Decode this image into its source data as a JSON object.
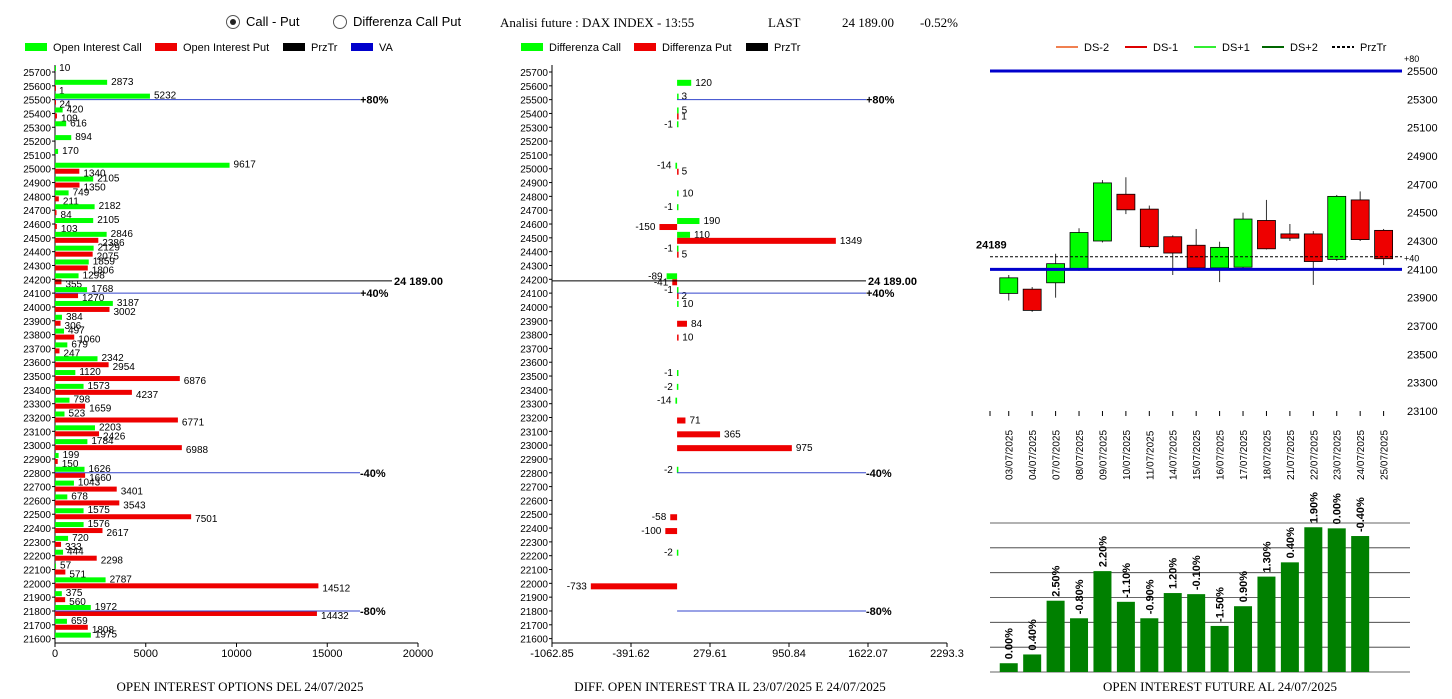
{
  "toolbar": {
    "option_call_put": "Call - Put",
    "option_diff": "Differenza Call Put",
    "header_title": "Analisi future : DAX INDEX - 13:55",
    "last_label": "LAST",
    "last_value": "24 189.00",
    "last_change": "-0.52%"
  },
  "colors": {
    "green": "#00ff00",
    "red": "#ee0000",
    "blue": "#0000cc",
    "darkgreen": "#008000",
    "va_line": "#3344cc"
  },
  "panels": {
    "left_title": "OPEN INTEREST OPTIONS DEL 24/07/2025",
    "middle_title": "DIFF. OPEN INTEREST TRA IL 23/07/2025 E 24/07/2025",
    "right_title": "OPEN INTEREST FUTURE AL 24/07/2025"
  },
  "chart_data": [
    {
      "type": "bar",
      "orientation": "horizontal",
      "legend": [
        "Open Interest Call",
        "Open Interest Put",
        "PrzTr",
        "VA"
      ],
      "strikes": [
        25700,
        25600,
        25500,
        25400,
        25300,
        25200,
        25100,
        25000,
        24900,
        24800,
        24700,
        24600,
        24500,
        24400,
        24300,
        24200,
        24100,
        24000,
        23900,
        23800,
        23700,
        23600,
        23500,
        23400,
        23300,
        23200,
        23100,
        23000,
        22900,
        22800,
        22700,
        22600,
        22500,
        22400,
        22300,
        22200,
        22100,
        22000,
        21900,
        21800,
        21700,
        21600
      ],
      "call": [
        10,
        2873,
        5232,
        420,
        616,
        894,
        170,
        9617,
        2105,
        749,
        2182,
        2105,
        2846,
        2129,
        1859,
        1298,
        1768,
        3187,
        384,
        497,
        679,
        2342,
        1120,
        1573,
        798,
        523,
        2203,
        1784,
        199,
        1626,
        1043,
        678,
        1575,
        1576,
        720,
        444,
        57,
        2787,
        375,
        1972,
        659,
        1975
      ],
      "put": [
        0,
        1,
        24,
        109,
        0,
        0,
        0,
        1340,
        1350,
        211,
        84,
        103,
        2386,
        2075,
        1806,
        355,
        1270,
        3002,
        306,
        1060,
        247,
        2954,
        6876,
        4237,
        1659,
        6771,
        2426,
        6988,
        150,
        1660,
        3401,
        3543,
        7501,
        2617,
        333,
        2298,
        571,
        14512,
        560,
        14432,
        1808,
        0
      ],
      "xticks": [
        "0",
        "5000",
        "10000",
        "15000",
        "20000"
      ],
      "xmax": 20000,
      "price_label": "24 189.00",
      "price": 24189,
      "va_lines": [
        {
          "strike": 25500,
          "label": "+80%"
        },
        {
          "strike": 24100,
          "label": "+40%"
        },
        {
          "strike": 22800,
          "label": "-40%"
        },
        {
          "strike": 21800,
          "label": "-80%"
        }
      ]
    },
    {
      "type": "bar",
      "orientation": "horizontal",
      "legend": [
        "Differenza Call",
        "Differenza Put",
        "PrzTr"
      ],
      "diff_call": [
        [
          25600,
          120
        ],
        [
          25500,
          3
        ],
        [
          25400,
          5
        ],
        [
          25300,
          -1
        ],
        [
          25000,
          -14
        ],
        [
          24800,
          10
        ],
        [
          24700,
          -1
        ],
        [
          24600,
          190
        ],
        [
          24500,
          110
        ],
        [
          24400,
          -1
        ],
        [
          24200,
          -89
        ],
        [
          24100,
          -1
        ],
        [
          24000,
          10
        ],
        [
          23500,
          -1
        ],
        [
          23400,
          -2
        ],
        [
          23300,
          -14
        ],
        [
          22800,
          -2
        ],
        [
          22200,
          -2
        ]
      ],
      "diff_put": [
        [
          25400,
          1
        ],
        [
          25000,
          5
        ],
        [
          24600,
          -150
        ],
        [
          24500,
          1349
        ],
        [
          24400,
          5
        ],
        [
          24200,
          -41
        ],
        [
          24100,
          2
        ],
        [
          23900,
          84
        ],
        [
          23800,
          10
        ],
        [
          23200,
          71
        ],
        [
          23100,
          365
        ],
        [
          23000,
          975
        ],
        [
          22500,
          -58
        ],
        [
          22400,
          -100
        ],
        [
          22000,
          -733
        ]
      ],
      "xticks": [
        "-1062.85",
        "-391.62",
        "279.61",
        "950.84",
        "1622.07",
        "2293.3"
      ],
      "xmin": -1062.85,
      "xmax": 2293.3
    },
    {
      "type": "candlestick",
      "legend": [
        "DS-2",
        "DS-1",
        "DS+1",
        "DS+2",
        "PrzTr"
      ],
      "dates": [
        "03/07/2025",
        "04/07/2025",
        "07/07/2025",
        "08/07/2025",
        "09/07/2025",
        "10/07/2025",
        "11/07/2025",
        "14/07/2025",
        "15/07/2025",
        "16/07/2025",
        "17/07/2025",
        "18/07/2025",
        "21/07/2025",
        "22/07/2025",
        "23/07/2025",
        "24/07/2025",
        "25/07/2025"
      ],
      "open": [
        23930,
        23960,
        24005,
        24100,
        24300,
        24630,
        24525,
        24330,
        24270,
        24110,
        24115,
        24445,
        24350,
        24350,
        24170,
        24590,
        24375
      ],
      "close": [
        24040,
        23810,
        24140,
        24360,
        24710,
        24520,
        24260,
        24215,
        24110,
        24255,
        24455,
        24245,
        24320,
        24155,
        24615,
        24310,
        24175
      ],
      "high": [
        24060,
        23975,
        24210,
        24390,
        24730,
        24750,
        24550,
        24340,
        24385,
        24295,
        24500,
        24590,
        24420,
        24370,
        24625,
        24650,
        24385
      ],
      "low": [
        23880,
        23800,
        23900,
        24090,
        24290,
        24490,
        24250,
        24060,
        24100,
        24010,
        24110,
        24240,
        24300,
        23990,
        24160,
        24300,
        24130
      ],
      "yticks": [
        25500,
        25300,
        25100,
        24900,
        24700,
        24500,
        24300,
        24100,
        23900,
        23700,
        23500,
        23300,
        23100
      ],
      "ymin": 23100,
      "ymax": 25500,
      "price_label": "24189",
      "price": 24189,
      "top_line": {
        "value": 25500,
        "label": "+80"
      },
      "mid_line": {
        "value": 24100,
        "label": "+40"
      }
    },
    {
      "type": "bar",
      "categories": [
        "03/07/2025",
        "04/07/2025",
        "07/07/2025",
        "08/07/2025",
        "09/07/2025",
        "10/07/2025",
        "11/07/2025",
        "14/07/2025",
        "15/07/2025",
        "16/07/2025",
        "17/07/2025",
        "18/07/2025",
        "21/07/2025",
        "22/07/2025",
        "23/07/2025",
        "24/07/2025",
        "25/07/2025"
      ],
      "values": [
        0.08,
        0.16,
        0.65,
        0.49,
        0.92,
        0.64,
        0.49,
        0.72,
        0.71,
        0.42,
        0.6,
        0.87,
        1.0,
        1.32,
        1.31,
        1.24,
        0
      ],
      "labels": [
        "0.00%",
        "0.40%",
        "2.50%",
        "-0.80%",
        "2.20%",
        "-1.10%",
        "-0.90%",
        "1.20%",
        "-0.10%",
        "-1.50%",
        "0.90%",
        "1.30%",
        "0.40%",
        "1.90%",
        "0.00%",
        "-0.40%",
        ""
      ]
    }
  ]
}
